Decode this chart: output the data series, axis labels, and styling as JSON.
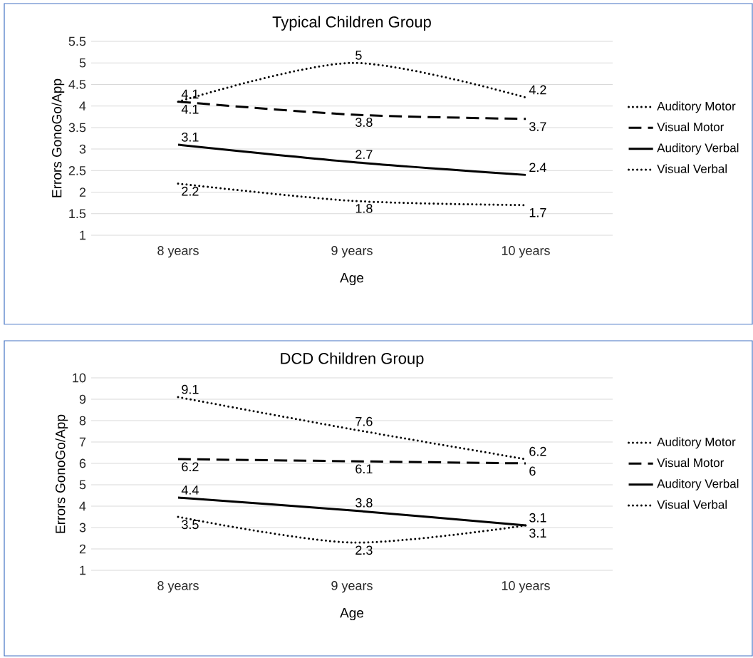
{
  "chart_data": [
    {
      "type": "line",
      "title": "Typical Children Group",
      "xlabel": "Age",
      "ylabel": "Errors GonoGo/App",
      "categories": [
        "8 years",
        "9 years",
        "10 years"
      ],
      "ylim": [
        1,
        5.5
      ],
      "yticks": [
        1,
        1.5,
        2,
        2.5,
        3,
        3.5,
        4,
        4.5,
        5,
        5.5
      ],
      "grid": "y",
      "legend": "right",
      "data_labels": true,
      "series": [
        {
          "name": "Auditory Motor",
          "color": "#000000",
          "line_style": "dotted",
          "values": [
            4.1,
            5,
            4.2
          ]
        },
        {
          "name": "Visual Motor",
          "color": "#000000",
          "line_style": "dashed",
          "values": [
            4.1,
            3.8,
            3.7
          ]
        },
        {
          "name": "Auditory Verbal",
          "color": "#000000",
          "line_style": "solid",
          "values": [
            3.1,
            2.7,
            2.4
          ]
        },
        {
          "name": "Visual Verbal",
          "color": "#000000",
          "line_style": "dotted",
          "values": [
            2.2,
            1.8,
            1.7
          ]
        }
      ]
    },
    {
      "type": "line",
      "title": "DCD Children Group",
      "xlabel": "Age",
      "ylabel": "Errors GonoGo/App",
      "categories": [
        "8 years",
        "9 years",
        "10 years"
      ],
      "ylim": [
        1,
        10
      ],
      "yticks": [
        1,
        2,
        3,
        4,
        5,
        6,
        7,
        8,
        9,
        10
      ],
      "grid": "y",
      "legend": "right",
      "data_labels": true,
      "series": [
        {
          "name": "Auditory Motor",
          "color": "#000000",
          "line_style": "dotted",
          "values": [
            9.1,
            7.6,
            6.2
          ]
        },
        {
          "name": "Visual Motor",
          "color": "#000000",
          "line_style": "dashed",
          "values": [
            6.2,
            6.1,
            6
          ]
        },
        {
          "name": "Auditory Verbal",
          "color": "#000000",
          "line_style": "solid",
          "values": [
            4.4,
            3.8,
            3.1
          ]
        },
        {
          "name": "Visual Verbal",
          "color": "#000000",
          "line_style": "dotted",
          "values": [
            3.5,
            2.3,
            3.1
          ]
        }
      ]
    }
  ]
}
